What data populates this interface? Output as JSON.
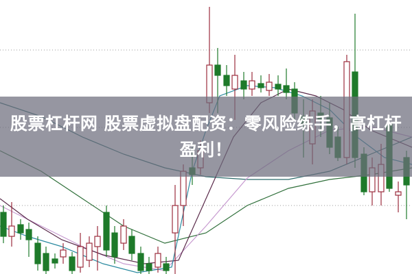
{
  "article": {
    "title": "股票杠杆网 股票虚拟盘配资：零风险练手，高杠杆盈利！"
  },
  "colors": {
    "up_candle": "#9b2c3c",
    "down_candle": "#1e7a2a",
    "overlay": "#6e6e7d",
    "grid": "#9a9a9a"
  }
}
